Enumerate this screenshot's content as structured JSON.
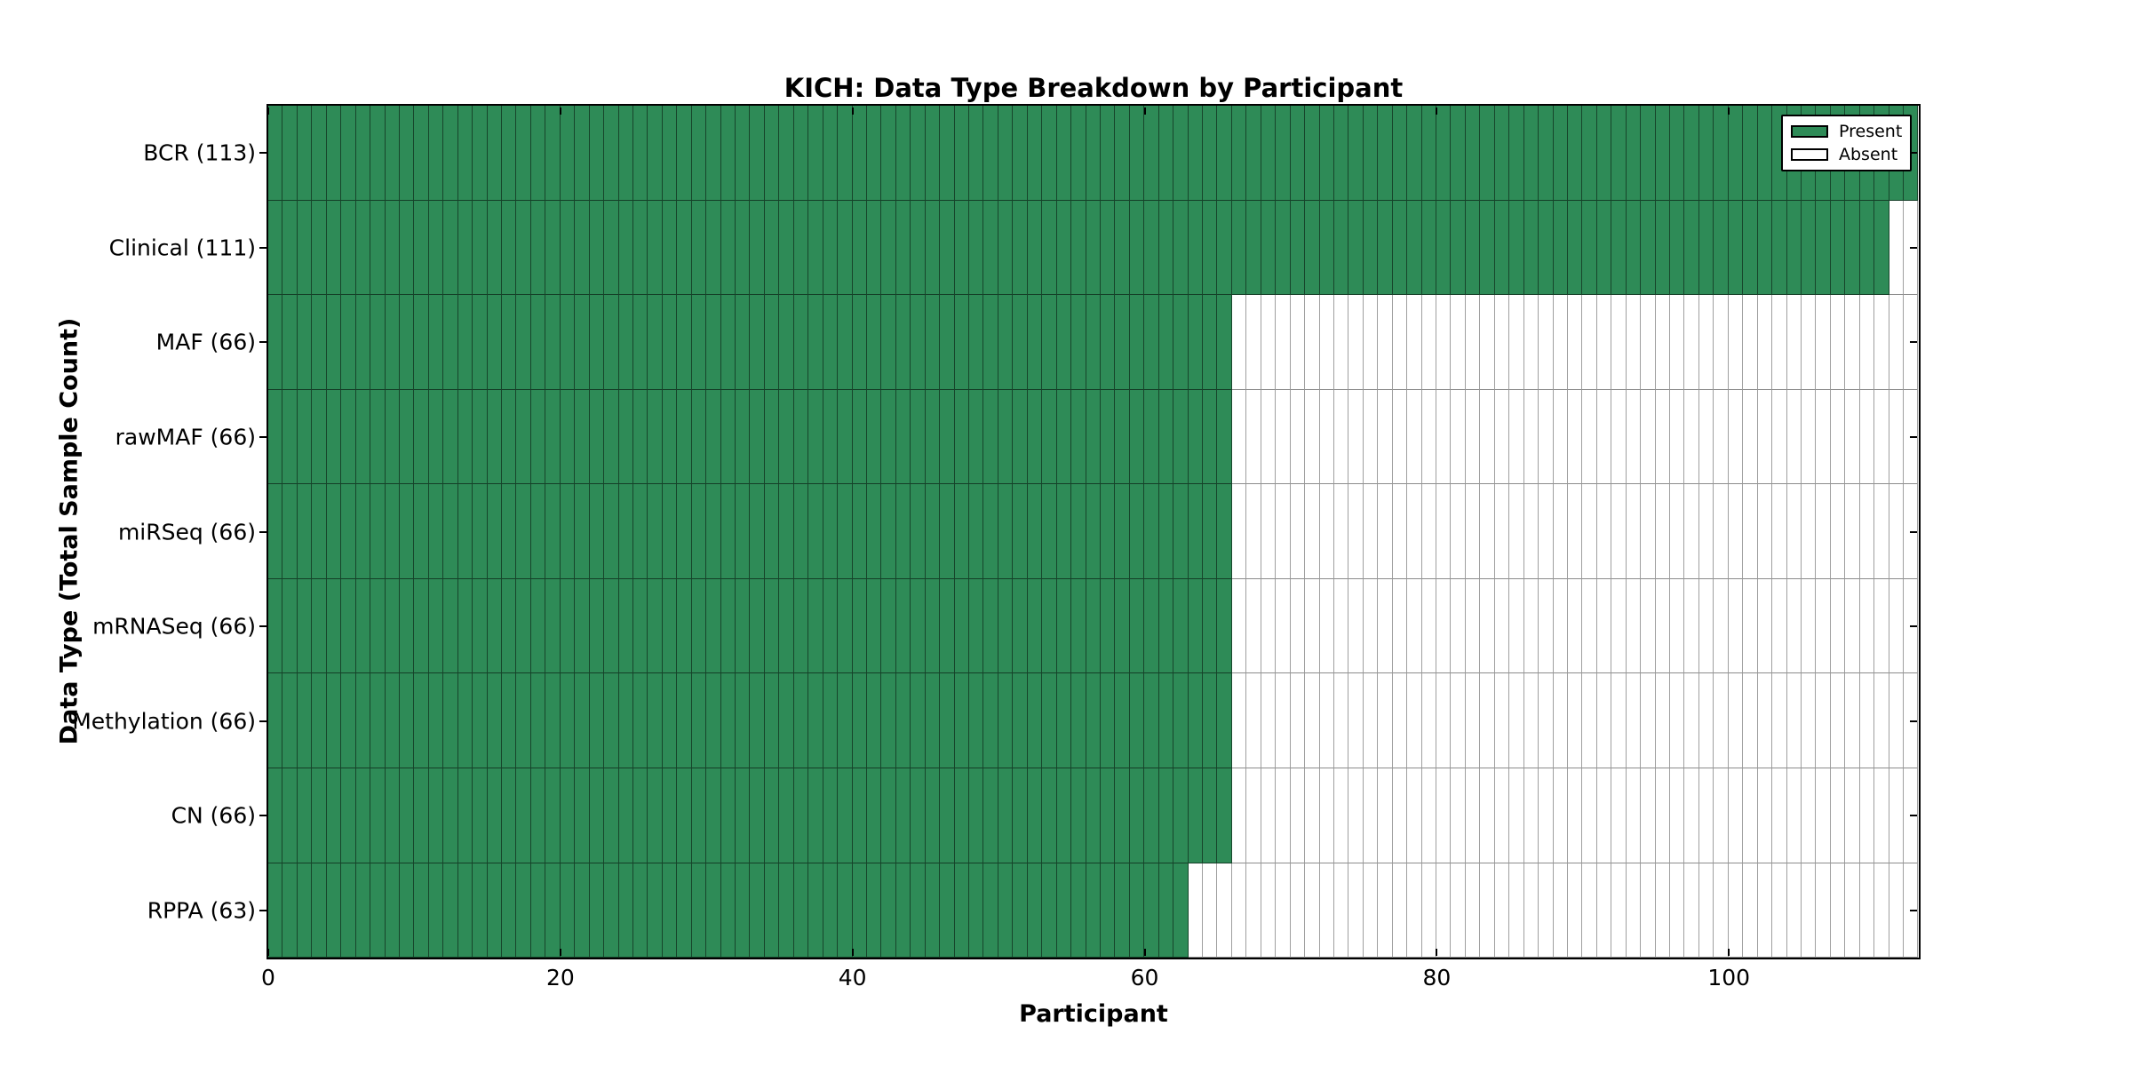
{
  "title": "KICH: Data Type Breakdown by Participant",
  "chart_data": {
    "type": "heatmap",
    "title": "KICH: Data Type Breakdown by Participant",
    "xlabel": "Participant",
    "ylabel": "Data Type (Total Sample Count)",
    "xlim": [
      0,
      113
    ],
    "xticks": [
      0,
      20,
      40,
      60,
      80,
      100
    ],
    "total_participants": 113,
    "grid": "off",
    "legend_position": "upper right",
    "rows": [
      {
        "data_type": "BCR",
        "label": "BCR (113)",
        "present_count": 113,
        "absent_count": 0
      },
      {
        "data_type": "Clinical",
        "label": "Clinical (111)",
        "present_count": 111,
        "absent_count": 2
      },
      {
        "data_type": "MAF",
        "label": "MAF (66)",
        "present_count": 66,
        "absent_count": 47
      },
      {
        "data_type": "rawMAF",
        "label": "rawMAF (66)",
        "present_count": 66,
        "absent_count": 47
      },
      {
        "data_type": "miRSeq",
        "label": "miRSeq (66)",
        "present_count": 66,
        "absent_count": 47
      },
      {
        "data_type": "mRNASeq",
        "label": "mRNASeq (66)",
        "present_count": 66,
        "absent_count": 47
      },
      {
        "data_type": "Methylation",
        "label": "Methylation (66)",
        "present_count": 66,
        "absent_count": 47
      },
      {
        "data_type": "CN",
        "label": "CN (66)",
        "present_count": 66,
        "absent_count": 47
      },
      {
        "data_type": "RPPA",
        "label": "RPPA (63)",
        "present_count": 63,
        "absent_count": 50
      }
    ],
    "legend": [
      {
        "label": "Present",
        "color": "#2e8b57"
      },
      {
        "label": "Absent",
        "color": "#ffffff"
      }
    ],
    "colors": {
      "present": "#2e8b57",
      "absent": "#ffffff",
      "spine": "#000000"
    }
  }
}
